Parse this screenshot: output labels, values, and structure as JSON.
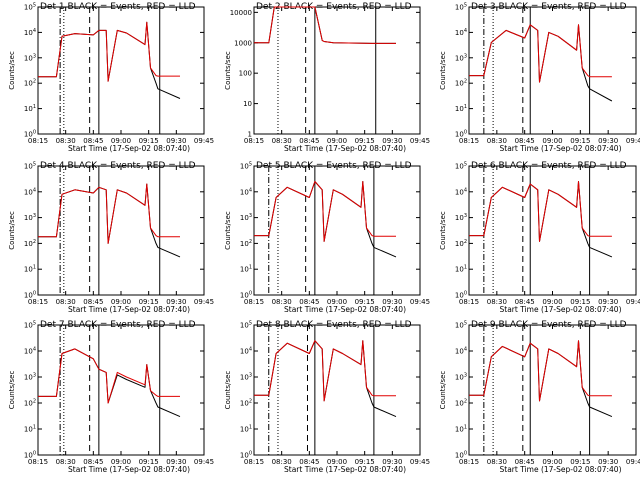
{
  "figure": {
    "xtick_labels": [
      "08:15",
      "08:30",
      "08:45",
      "09:00",
      "09:15",
      "09:30",
      "09:45"
    ],
    "xlabel": "Start Time (17-Sep-02 08:07:40)",
    "ylabel": "Counts/sec",
    "series_names": [
      "Events",
      "LLD"
    ],
    "colors": {
      "events": "#000000",
      "lld": "#e00000"
    }
  },
  "chart_data": [
    {
      "type": "line",
      "detector": "Det 1",
      "title": "Det 1 BLACK = Events, RED = LLD",
      "ylabel": "Counts/sec",
      "xlabel": "Start Time (17-Sep-02 08:07:40)",
      "yscale": "log",
      "ylim": [
        1,
        100000
      ],
      "ytick_labels": [
        "10^0",
        "10^1",
        "10^2",
        "10^3",
        "10^4",
        "10^5"
      ],
      "x_minutes_from_0815": [
        0,
        10,
        13,
        20,
        30,
        33,
        37,
        38,
        43,
        48,
        58,
        59,
        61,
        64,
        65,
        77
      ],
      "series": [
        {
          "name": "Events",
          "values": [
            180,
            180,
            7000,
            9000,
            8000,
            12000,
            12000,
            120,
            12000,
            9500,
            3300,
            25000,
            400,
            100,
            60,
            25
          ]
        },
        {
          "name": "LLD",
          "values": [
            180,
            180,
            7000,
            9000,
            8000,
            12000,
            12000,
            120,
            12000,
            9500,
            3300,
            25000,
            400,
            200,
            190,
            190
          ]
        }
      ],
      "markers": {
        "dash_dot": 12,
        "dotted": 14,
        "dashed": 28,
        "solid": [
          33,
          66
        ]
      }
    },
    {
      "type": "line",
      "detector": "Det 2",
      "title": "Det 2 BLACK = Events, RED = LLD",
      "ylabel": "Counts/sec",
      "xlabel": "Start Time (17-Sep-02 08:07:40)",
      "yscale": "log",
      "ylim": [
        1,
        15000
      ],
      "ytick_labels": [
        "1",
        "10",
        "100",
        "1000",
        "10000"
      ],
      "x_minutes_from_0815": [
        0,
        8,
        11,
        17,
        30,
        33,
        37,
        38,
        43,
        64,
        77
      ],
      "series": [
        {
          "name": "Events",
          "values": [
            1000,
            1000,
            15000,
            15000,
            15000,
            15000,
            1200,
            1100,
            1000,
            950,
            950
          ]
        },
        {
          "name": "LLD",
          "values": [
            1000,
            1000,
            15000,
            15000,
            15000,
            15000,
            1200,
            1100,
            1000,
            950,
            950
          ]
        }
      ],
      "markers": {
        "dash_dot": null,
        "dotted": 13,
        "dashed": 28,
        "solid": [
          33,
          66
        ]
      }
    },
    {
      "type": "line",
      "detector": "Det 3",
      "title": "Det 3 BLACK = Events, RED = LLD",
      "ylabel": "Counts/sec",
      "xlabel": "Start Time (17-Sep-02 08:07:40)",
      "yscale": "log",
      "ylim": [
        1,
        100000
      ],
      "ytick_labels": [
        "10^0",
        "10^1",
        "10^2",
        "10^3",
        "10^4",
        "10^5"
      ],
      "x_minutes_from_0815": [
        0,
        8,
        12,
        20,
        30,
        33,
        37,
        38,
        43,
        48,
        58,
        59,
        61,
        64,
        65,
        77
      ],
      "series": [
        {
          "name": "Events",
          "values": [
            200,
            200,
            4000,
            12000,
            6000,
            20000,
            12000,
            110,
            10000,
            7000,
            2000,
            20000,
            400,
            80,
            60,
            20
          ]
        },
        {
          "name": "LLD",
          "values": [
            200,
            200,
            4000,
            12000,
            6000,
            20000,
            12000,
            110,
            10000,
            7000,
            2000,
            20000,
            400,
            200,
            180,
            180
          ]
        }
      ],
      "markers": {
        "dash_dot": 8,
        "dotted": 13,
        "dashed": 29,
        "solid": [
          33,
          65
        ]
      }
    },
    {
      "type": "line",
      "detector": "Det 4",
      "title": "Det 4 BLACK = Events, RED = LLD",
      "ylabel": "Counts/sec",
      "xlabel": "Start Time (17-Sep-02 08:07:40)",
      "yscale": "log",
      "ylim": [
        1,
        100000
      ],
      "ytick_labels": [
        "10^0",
        "10^1",
        "10^2",
        "10^3",
        "10^4",
        "10^5"
      ],
      "x_minutes_from_0815": [
        0,
        10,
        13,
        20,
        30,
        33,
        37,
        38,
        43,
        48,
        58,
        59,
        61,
        64,
        65,
        77
      ],
      "series": [
        {
          "name": "Events",
          "values": [
            180,
            180,
            8000,
            12000,
            9000,
            15000,
            12000,
            100,
            12000,
            9000,
            3000,
            20000,
            400,
            100,
            70,
            30
          ]
        },
        {
          "name": "LLD",
          "values": [
            180,
            180,
            8000,
            12000,
            9000,
            15000,
            12000,
            100,
            12000,
            9000,
            3000,
            20000,
            400,
            200,
            180,
            180
          ]
        }
      ],
      "markers": {
        "dash_dot": 12,
        "dotted": 14,
        "dashed": 28,
        "solid": [
          33,
          66
        ]
      }
    },
    {
      "type": "line",
      "detector": "Det 5",
      "title": "Det 5 BLACK = Events, RED = LLD",
      "ylabel": "Counts/sec",
      "xlabel": "Start Time (17-Sep-02 08:07:40)",
      "yscale": "log",
      "ylim": [
        1,
        100000
      ],
      "ytick_labels": [
        "10^0",
        "10^1",
        "10^2",
        "10^3",
        "10^4",
        "10^5"
      ],
      "x_minutes_from_0815": [
        0,
        8,
        12,
        18,
        30,
        33,
        37,
        38,
        43,
        48,
        58,
        59,
        61,
        64,
        65,
        77
      ],
      "series": [
        {
          "name": "Events",
          "values": [
            200,
            200,
            6000,
            15000,
            6000,
            25000,
            12000,
            120,
            12000,
            8000,
            2500,
            25000,
            400,
            100,
            70,
            30
          ]
        },
        {
          "name": "LLD",
          "values": [
            200,
            200,
            6000,
            15000,
            6000,
            25000,
            12000,
            120,
            12000,
            8000,
            2500,
            25000,
            400,
            200,
            190,
            190
          ]
        }
      ],
      "markers": {
        "dash_dot": 8,
        "dotted": 13,
        "dashed": 28,
        "solid": [
          33,
          65
        ]
      }
    },
    {
      "type": "line",
      "detector": "Det 6",
      "title": "Det 6 BLACK = Events, RED = LLD",
      "ylabel": "Counts/sec",
      "xlabel": "Start Time (17-Sep-02 08:07:40)",
      "yscale": "log",
      "ylim": [
        1,
        100000
      ],
      "ytick_labels": [
        "10^0",
        "10^1",
        "10^2",
        "10^3",
        "10^4",
        "10^5"
      ],
      "x_minutes_from_0815": [
        0,
        8,
        12,
        18,
        30,
        33,
        37,
        38,
        43,
        48,
        58,
        59,
        61,
        64,
        65,
        77
      ],
      "series": [
        {
          "name": "Events",
          "values": [
            200,
            200,
            6000,
            15000,
            6000,
            20000,
            12000,
            120,
            12000,
            8000,
            2500,
            25000,
            400,
            100,
            70,
            30
          ]
        },
        {
          "name": "LLD",
          "values": [
            200,
            200,
            6000,
            15000,
            6000,
            20000,
            12000,
            120,
            12000,
            8000,
            2500,
            25000,
            400,
            200,
            190,
            190
          ]
        }
      ],
      "markers": {
        "dash_dot": 8,
        "dotted": 13,
        "dashed": 29,
        "solid": [
          33,
          65
        ]
      }
    },
    {
      "type": "line",
      "detector": "Det 7",
      "title": "Det 7 BLACK = Events, RED = LLD",
      "ylabel": "Counts/sec",
      "xlabel": "Start Time (17-Sep-02 08:07:40)",
      "yscale": "log",
      "ylim": [
        1,
        100000
      ],
      "ytick_labels": [
        "10^0",
        "10^1",
        "10^2",
        "10^3",
        "10^4",
        "10^5"
      ],
      "x_minutes_from_0815": [
        0,
        10,
        13,
        20,
        30,
        33,
        37,
        38,
        43,
        48,
        58,
        59,
        61,
        64,
        65,
        77
      ],
      "series": [
        {
          "name": "Events",
          "values": [
            180,
            180,
            8000,
            12000,
            5000,
            2000,
            1500,
            100,
            1200,
            800,
            400,
            3000,
            300,
            100,
            70,
            30
          ]
        },
        {
          "name": "LLD",
          "values": [
            180,
            180,
            8000,
            12000,
            5000,
            2000,
            1500,
            100,
            1500,
            1000,
            500,
            3000,
            300,
            200,
            180,
            180
          ]
        }
      ],
      "markers": {
        "dash_dot": 12,
        "dotted": 14,
        "dashed": 28,
        "solid": [
          33,
          66
        ]
      }
    },
    {
      "type": "line",
      "detector": "Det 8",
      "title": "Det 8 BLACK = Events, RED = LLD",
      "ylabel": "Counts/sec",
      "xlabel": "Start Time (17-Sep-02 08:07:40)",
      "yscale": "log",
      "ylim": [
        1,
        100000
      ],
      "ytick_labels": [
        "10^0",
        "10^1",
        "10^2",
        "10^3",
        "10^4",
        "10^5"
      ],
      "x_minutes_from_0815": [
        0,
        8,
        12,
        18,
        30,
        33,
        37,
        38,
        43,
        48,
        58,
        59,
        61,
        64,
        65,
        77
      ],
      "series": [
        {
          "name": "Events",
          "values": [
            200,
            200,
            8000,
            20000,
            8000,
            25000,
            12000,
            120,
            12000,
            8000,
            3000,
            25000,
            400,
            100,
            70,
            30
          ]
        },
        {
          "name": "LLD",
          "values": [
            200,
            200,
            8000,
            20000,
            8000,
            25000,
            12000,
            120,
            12000,
            8000,
            3000,
            25000,
            400,
            200,
            190,
            190
          ]
        }
      ],
      "markers": {
        "dash_dot": 8,
        "dotted": 13,
        "dashed": 29,
        "solid": [
          33,
          65
        ]
      }
    },
    {
      "type": "line",
      "detector": "Det 9",
      "title": "Det 9 BLACK = Events, RED = LLD",
      "ylabel": "Counts/sec",
      "xlabel": "Start Time (17-Sep-02 08:07:40)",
      "yscale": "log",
      "ylim": [
        1,
        100000
      ],
      "ytick_labels": [
        "10^0",
        "10^1",
        "10^2",
        "10^3",
        "10^4",
        "10^5"
      ],
      "x_minutes_from_0815": [
        0,
        8,
        12,
        18,
        30,
        33,
        37,
        38,
        43,
        48,
        58,
        59,
        61,
        64,
        65,
        77
      ],
      "series": [
        {
          "name": "Events",
          "values": [
            200,
            200,
            6000,
            15000,
            6000,
            20000,
            12000,
            120,
            12000,
            8000,
            2500,
            25000,
            400,
            100,
            70,
            30
          ]
        },
        {
          "name": "LLD",
          "values": [
            200,
            200,
            6000,
            15000,
            6000,
            20000,
            12000,
            120,
            12000,
            8000,
            2500,
            25000,
            400,
            200,
            190,
            190
          ]
        }
      ],
      "markers": {
        "dash_dot": 8,
        "dotted": 13,
        "dashed": 29,
        "solid": [
          33,
          65
        ]
      }
    }
  ]
}
